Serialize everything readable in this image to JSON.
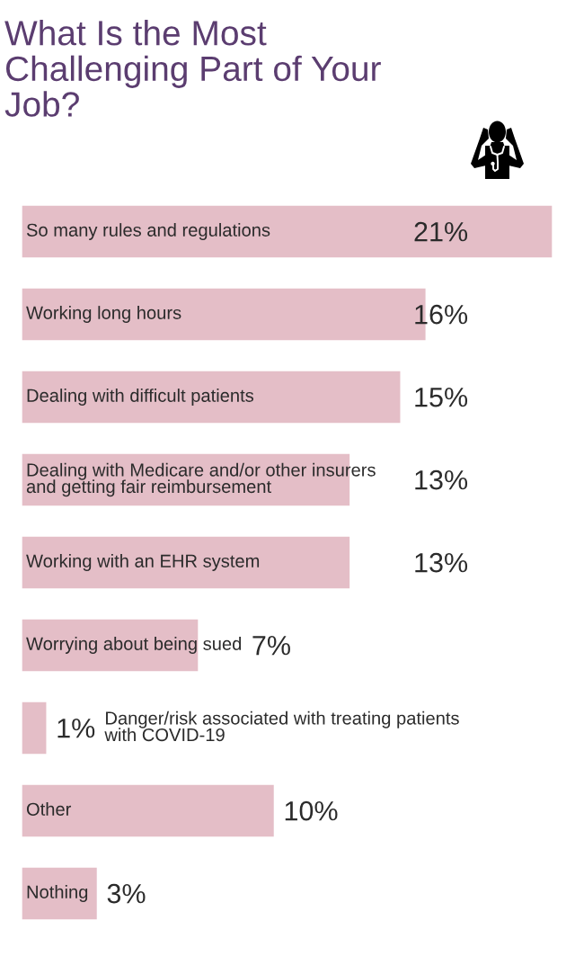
{
  "chart_data": {
    "type": "bar",
    "orientation": "horizontal",
    "title": "What Is the Most\nChallenging Part of Your\nJob?",
    "categories": [
      "So many rules and regulations",
      "Working long hours",
      "Dealing with difficult patients",
      "Dealing with Medicare and/or other insurers\nand getting fair reimbursement",
      "Working with an EHR system",
      "Worrying about being sued",
      "Danger/risk associated with treating patients\nwith COVID-19",
      "Other",
      "Nothing"
    ],
    "values": [
      21,
      16,
      15,
      13,
      13,
      7,
      1,
      10,
      3
    ],
    "value_labels": [
      "21%",
      "16%",
      "15%",
      "13%",
      "13%",
      "7%",
      "1%",
      "10%",
      "3%"
    ],
    "color": "#e4bec7",
    "tick_labels": "y"
  }
}
